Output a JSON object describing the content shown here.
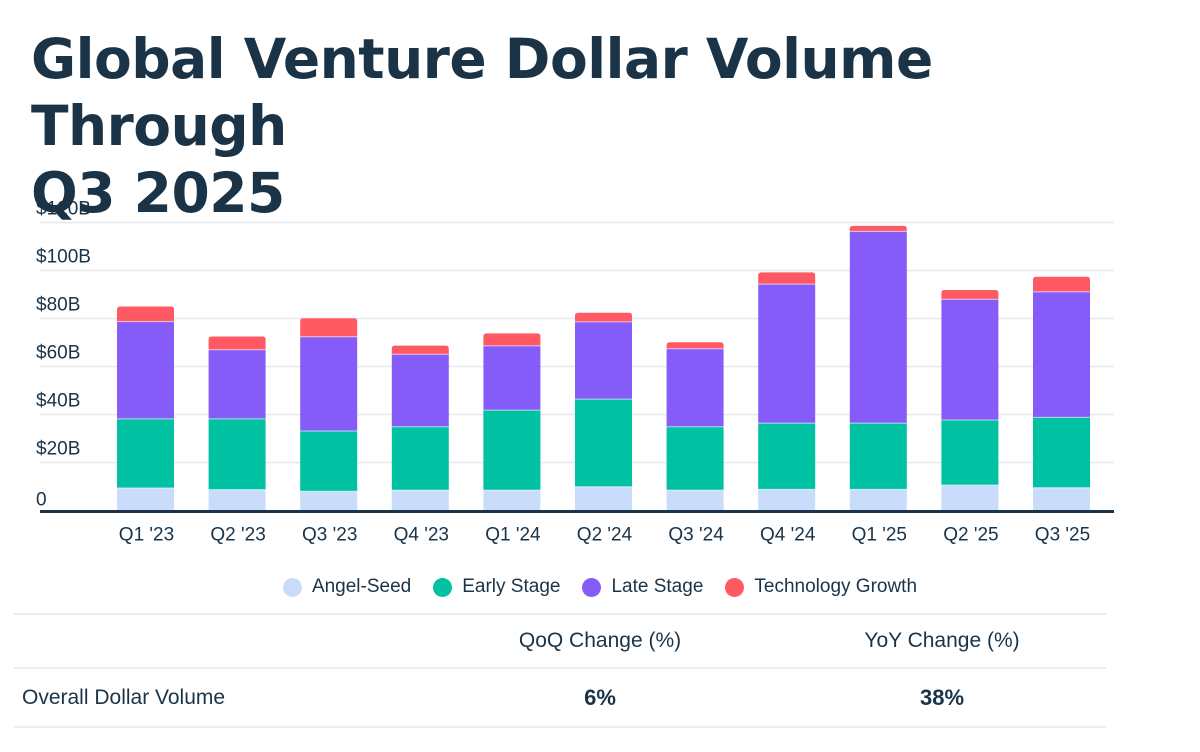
{
  "chart_data": {
    "type": "bar",
    "stacked": true,
    "title": "Global Venture Dollar Volume Through Q3 2025",
    "xlabel": "",
    "ylabel": "",
    "ylim": [
      0,
      120
    ],
    "yticks": [
      0,
      20,
      40,
      60,
      80,
      100,
      120
    ],
    "ytick_labels": [
      "0",
      "$20B",
      "$40B",
      "$60B",
      "$80B",
      "$100B",
      "$120B"
    ],
    "grid": true,
    "legend_position": "bottom-center",
    "categories": [
      "Q1 '23",
      "Q2 '23",
      "Q3 '23",
      "Q4 '23",
      "Q1 '24",
      "Q2 '24",
      "Q3 '24",
      "Q4 '24",
      "Q1 '25",
      "Q2 '25",
      "Q3 '25"
    ],
    "series": [
      {
        "name": "Angel-Seed",
        "color": "#cadcfc",
        "values": [
          9.4,
          8.7,
          8.0,
          8.5,
          8.5,
          9.9,
          8.5,
          8.8,
          8.8,
          10.6,
          9.5
        ]
      },
      {
        "name": "Early Stage",
        "color": "#00c2a2",
        "values": [
          28.8,
          29.5,
          25.1,
          26.4,
          33.3,
          36.5,
          26.4,
          27.6,
          27.6,
          27.1,
          29.3
        ]
      },
      {
        "name": "Late Stage",
        "color": "#855cf8",
        "values": [
          40.5,
          28.8,
          39.3,
          30.2,
          26.8,
          32.2,
          32.5,
          57.9,
          79.9,
          50.3,
          52.3
        ]
      },
      {
        "name": "Technology Growth",
        "color": "#ff5a64",
        "values": [
          6.3,
          5.5,
          7.7,
          3.6,
          5.2,
          3.8,
          2.7,
          4.9,
          2.3,
          3.9,
          6.3
        ]
      }
    ]
  },
  "title_lines": [
    "Global Venture Dollar Volume Through",
    "Q3 2025"
  ],
  "colors": {
    "text": "#1b3347",
    "grid": "#e6e8eb",
    "axis": "#1b3347"
  },
  "summary_table": {
    "headers": [
      "",
      "QoQ Change (%)",
      "YoY Change (%)"
    ],
    "rows": [
      {
        "label": "Overall Dollar Volume",
        "qoq": "6%",
        "yoy": "38%"
      }
    ]
  }
}
